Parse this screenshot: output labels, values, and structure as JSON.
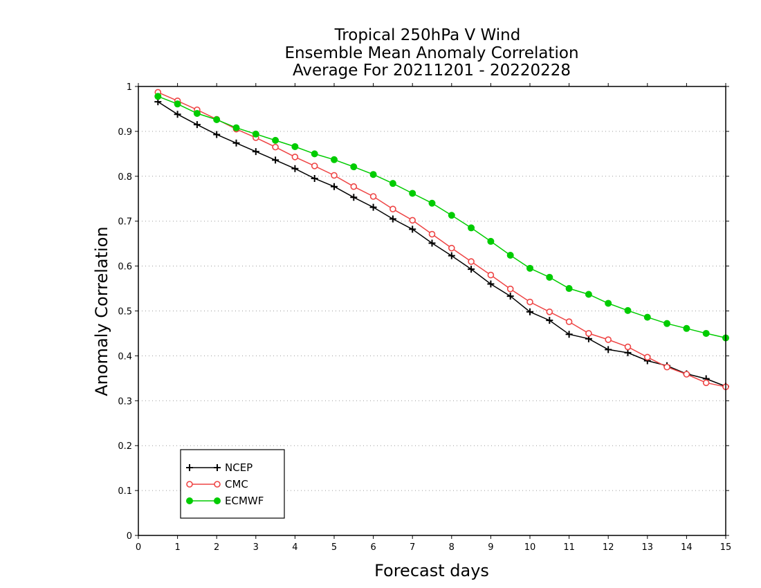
{
  "chart_data": {
    "type": "line",
    "title": [
      "Tropical 250hPa V Wind",
      "Ensemble Mean Anomaly Correlation",
      "Average For 20211201 - 20220228"
    ],
    "xlabel": "Forecast days",
    "ylabel": "Anomaly Correlation",
    "xlim": [
      0,
      15
    ],
    "ylim": [
      0,
      1
    ],
    "xticks": [
      0,
      1,
      2,
      3,
      4,
      5,
      6,
      7,
      8,
      9,
      10,
      11,
      12,
      13,
      14,
      15
    ],
    "yticks": [
      0,
      0.1,
      0.2,
      0.3,
      0.4,
      0.5,
      0.6,
      0.7,
      0.8,
      0.9,
      1
    ],
    "ytick_labels": [
      "0",
      "0.1",
      "0.2",
      "0.3",
      "0.4",
      "0.5",
      "0.6",
      "0.7",
      "0.8",
      "0.9",
      "1"
    ],
    "grid": "horizontal dotted",
    "legend_position": "bottom-left",
    "x": [
      0.5,
      1,
      1.5,
      2,
      2.5,
      3,
      3.5,
      4,
      4.5,
      5,
      5.5,
      6,
      6.5,
      7,
      7.5,
      8,
      8.5,
      9,
      9.5,
      10,
      10.5,
      11,
      11.5,
      12,
      12.5,
      13,
      13.5,
      14,
      14.5,
      15
    ],
    "series": [
      {
        "name": "NCEP",
        "color": "#000000",
        "marker": "plus",
        "values": [
          0.966,
          0.938,
          0.915,
          0.893,
          0.874,
          0.855,
          0.836,
          0.817,
          0.795,
          0.777,
          0.753,
          0.731,
          0.705,
          0.682,
          0.651,
          0.623,
          0.593,
          0.56,
          0.533,
          0.498,
          0.479,
          0.448,
          0.438,
          0.414,
          0.407,
          0.389,
          0.378,
          0.36,
          0.349,
          0.332
        ]
      },
      {
        "name": "CMC",
        "color": "#ee4444",
        "marker": "open-circle",
        "values": [
          0.987,
          0.968,
          0.948,
          0.927,
          0.905,
          0.886,
          0.865,
          0.843,
          0.823,
          0.802,
          0.777,
          0.755,
          0.727,
          0.702,
          0.671,
          0.64,
          0.61,
          0.58,
          0.549,
          0.52,
          0.498,
          0.476,
          0.45,
          0.436,
          0.42,
          0.397,
          0.375,
          0.359,
          0.34,
          0.331
        ]
      },
      {
        "name": "ECMWF",
        "color": "#00cc00",
        "marker": "filled-circle",
        "values": [
          0.978,
          0.961,
          0.94,
          0.926,
          0.908,
          0.894,
          0.88,
          0.866,
          0.85,
          0.837,
          0.821,
          0.804,
          0.784,
          0.762,
          0.74,
          0.713,
          0.685,
          0.655,
          0.624,
          0.595,
          0.575,
          0.55,
          0.537,
          0.517,
          0.501,
          0.486,
          0.472,
          0.461,
          0.45,
          0.44
        ]
      }
    ]
  }
}
